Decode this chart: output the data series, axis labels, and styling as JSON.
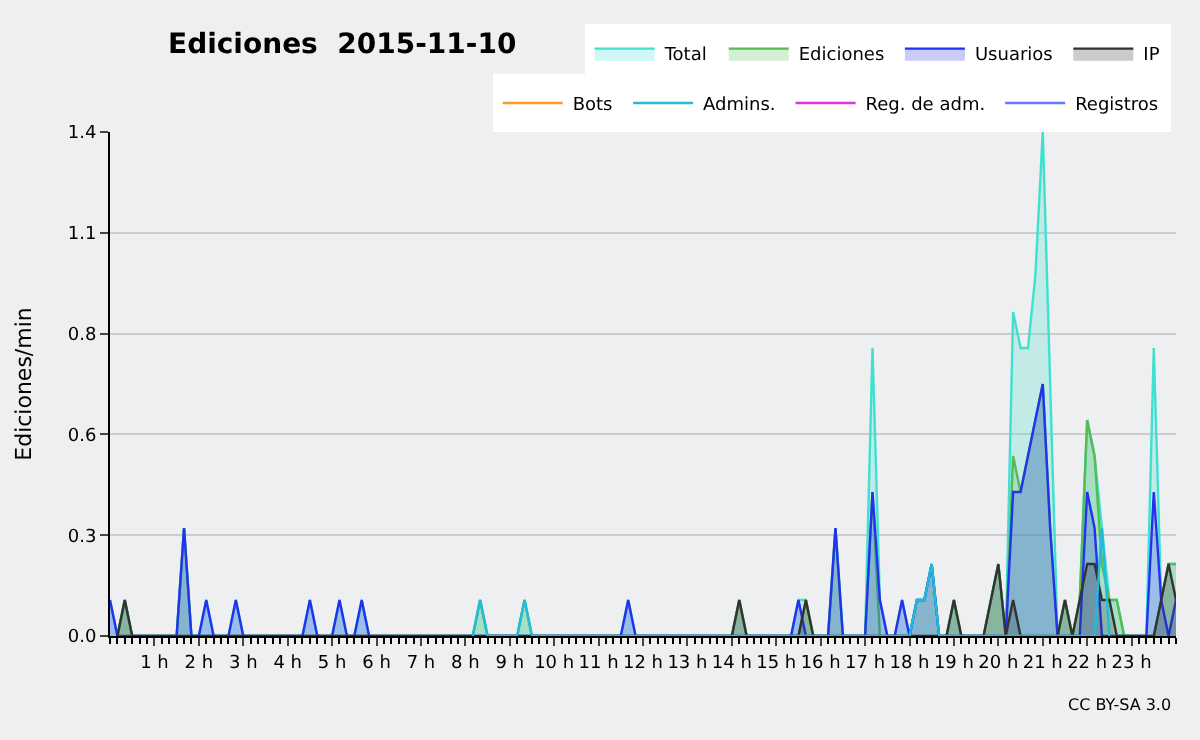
{
  "chart_data": {
    "type": "area",
    "title": "Ediciones  2015-11-10",
    "ylabel": "Ediciones/min",
    "xlim": [
      0,
      24
    ],
    "ylim": [
      0,
      1.4
    ],
    "xticks": [
      {
        "value": 1,
        "label": "1 h"
      },
      {
        "value": 2,
        "label": "2 h"
      },
      {
        "value": 3,
        "label": "3 h"
      },
      {
        "value": 4,
        "label": "4 h"
      },
      {
        "value": 5,
        "label": "5 h"
      },
      {
        "value": 6,
        "label": "6 h"
      },
      {
        "value": 7,
        "label": "7 h"
      },
      {
        "value": 8,
        "label": "8 h"
      },
      {
        "value": 9,
        "label": "9 h"
      },
      {
        "value": 10,
        "label": "10 h"
      },
      {
        "value": 11,
        "label": "11 h"
      },
      {
        "value": 12,
        "label": "12 h"
      },
      {
        "value": 13,
        "label": "13 h"
      },
      {
        "value": 14,
        "label": "14 h"
      },
      {
        "value": 15,
        "label": "15 h"
      },
      {
        "value": 16,
        "label": "16 h"
      },
      {
        "value": 17,
        "label": "17 h"
      },
      {
        "value": 18,
        "label": "18 h"
      },
      {
        "value": 19,
        "label": "19 h"
      },
      {
        "value": 20,
        "label": "20 h"
      },
      {
        "value": 21,
        "label": "21 h"
      },
      {
        "value": 22,
        "label": "22 h"
      },
      {
        "value": 23,
        "label": "23 h"
      }
    ],
    "yticks": [
      {
        "value": 0,
        "label": "0.0"
      },
      {
        "value": 0.28,
        "label": "0.3"
      },
      {
        "value": 0.56,
        "label": "0.6"
      },
      {
        "value": 0.84,
        "label": "0.8"
      },
      {
        "value": 1.12,
        "label": "1.1"
      },
      {
        "value": 1.4,
        "label": "1.4"
      }
    ],
    "grid": "y",
    "legend": "top right",
    "annotations": [
      "CC BY-SA 3.0"
    ],
    "series": [
      {
        "name": "Total",
        "color": "#40e0d0",
        "x": [
          0,
          0.167,
          0.333,
          0.5,
          1.5,
          1.667,
          1.833,
          2,
          2.167,
          2.333,
          2.667,
          2.833,
          3,
          4.333,
          4.5,
          4.667,
          5,
          5.167,
          5.333,
          5.5,
          5.667,
          5.833,
          8.167,
          8.333,
          8.5,
          9.167,
          9.333,
          9.5,
          11.5,
          11.667,
          11.833,
          14,
          14.167,
          14.333,
          15.333,
          15.5,
          15.667,
          15.833,
          16.167,
          16.333,
          16.5,
          17,
          17.167,
          17.333,
          17.5,
          17.667,
          17.833,
          18,
          18.167,
          18.333,
          18.5,
          18.667,
          18.833,
          19,
          19.167,
          19.667,
          19.833,
          20,
          20.167,
          20.333,
          20.5,
          20.667,
          20.833,
          21,
          21.333,
          21.5,
          21.667,
          21.833,
          22,
          22.167,
          22.333,
          22.5,
          22.667,
          22.833,
          23.333,
          23.5,
          23.667,
          23.833,
          24
        ],
        "values": [
          0.1,
          0,
          0.1,
          0,
          0,
          0.3,
          0,
          0,
          0.1,
          0,
          0,
          0.1,
          0,
          0,
          0.1,
          0,
          0,
          0.1,
          0,
          0,
          0.1,
          0,
          0,
          0.1,
          0,
          0,
          0.1,
          0,
          0,
          0.1,
          0,
          0,
          0.1,
          0,
          0,
          0.1,
          0.1,
          0,
          0,
          0.3,
          0,
          0,
          0.8,
          0.1,
          0,
          0,
          0.1,
          0,
          0.1,
          0.1,
          0.2,
          0,
          0,
          0.1,
          0,
          0,
          0.1,
          0.2,
          0,
          0.9,
          0.8,
          0.8,
          1.0,
          1.4,
          0,
          0.1,
          0,
          0.1,
          0.6,
          0.5,
          0.3,
          0.1,
          0.1,
          0,
          0,
          0.8,
          0.1,
          0.2,
          0.2
        ]
      },
      {
        "name": "Ediciones",
        "color": "#55bb55",
        "x": [
          0.167,
          0.333,
          0.5,
          1.5,
          1.667,
          1.833,
          8.167,
          8.333,
          8.5,
          9.167,
          9.333,
          9.5,
          14,
          14.167,
          14.333,
          15.5,
          15.667,
          15.833,
          16.167,
          16.333,
          16.5,
          17,
          17.167,
          17.333,
          18,
          18.167,
          18.333,
          18.5,
          18.667,
          18.833,
          19,
          19.167,
          19.667,
          19.833,
          20,
          20.167,
          20.333,
          20.5,
          20.667,
          20.833,
          21,
          21.167,
          21.333,
          21.5,
          21.667,
          21.833,
          22,
          22.167,
          22.333,
          22.5,
          22.667,
          22.833,
          23.5,
          23.667,
          23.833,
          24
        ],
        "values": [
          0,
          0.1,
          0,
          0,
          0.3,
          0,
          0,
          0.1,
          0,
          0,
          0.1,
          0,
          0,
          0.1,
          0,
          0,
          0.1,
          0,
          0,
          0.3,
          0,
          0,
          0.4,
          0,
          0,
          0.1,
          0.1,
          0.2,
          0,
          0,
          0.1,
          0,
          0,
          0.1,
          0.2,
          0,
          0.5,
          0.4,
          0.5,
          0.6,
          0.7,
          0.3,
          0,
          0.1,
          0,
          0.1,
          0.6,
          0.5,
          0.2,
          0.1,
          0.1,
          0,
          0,
          0.1,
          0.2,
          0.2
        ]
      },
      {
        "name": "Usuarios",
        "color": "#2233ee",
        "x": [
          0,
          0.167,
          1.5,
          1.667,
          1.833,
          2,
          2.167,
          2.333,
          2.667,
          2.833,
          3,
          4.333,
          4.5,
          4.667,
          5,
          5.167,
          5.333,
          5.5,
          5.667,
          5.833,
          11.5,
          11.667,
          11.833,
          15.333,
          15.5,
          15.667,
          16.167,
          16.333,
          16.5,
          17,
          17.167,
          17.333,
          17.5,
          17.667,
          17.833,
          18,
          18.167,
          18.333,
          18.5,
          18.667,
          20.167,
          20.333,
          20.5,
          20.667,
          20.833,
          21,
          21.167,
          21.333,
          21.833,
          22,
          22.167,
          22.333,
          23.333,
          23.5,
          23.667,
          23.833,
          24
        ],
        "values": [
          0.1,
          0,
          0,
          0.3,
          0,
          0,
          0.1,
          0,
          0,
          0.1,
          0,
          0,
          0.1,
          0,
          0,
          0.1,
          0,
          0,
          0.1,
          0,
          0,
          0.1,
          0,
          0,
          0.1,
          0,
          0,
          0.3,
          0,
          0,
          0.4,
          0.1,
          0,
          0,
          0.1,
          0,
          0.1,
          0.1,
          0.2,
          0,
          0,
          0.4,
          0.4,
          0.5,
          0.6,
          0.7,
          0.3,
          0,
          0,
          0.4,
          0.3,
          0,
          0,
          0.4,
          0.1,
          0,
          0.1
        ]
      },
      {
        "name": "IP",
        "color": "#333333",
        "x": [
          0.167,
          0.333,
          0.5,
          14,
          14.167,
          14.333,
          15.5,
          15.667,
          15.833,
          18.833,
          19,
          19.167,
          19.667,
          19.833,
          20,
          20.167,
          20.333,
          20.5,
          21.333,
          21.5,
          21.667,
          21.833,
          22,
          22.167,
          22.333,
          22.5,
          22.667,
          23.5,
          23.667,
          23.833,
          24
        ],
        "values": [
          0,
          0.1,
          0,
          0,
          0.1,
          0,
          0,
          0.1,
          0,
          0,
          0.1,
          0,
          0,
          0.1,
          0.2,
          0,
          0.1,
          0,
          0,
          0.1,
          0,
          0.1,
          0.2,
          0.2,
          0.1,
          0.1,
          0,
          0,
          0.1,
          0.2,
          0.1
        ]
      },
      {
        "name": "Bots",
        "color": "#ff9922",
        "type": "line"
      },
      {
        "name": "Admins.",
        "color": "#22bbdd",
        "type": "line",
        "x": [
          8.167,
          8.333,
          8.5,
          9.167,
          9.333,
          9.5,
          18,
          18.167,
          18.333,
          18.5,
          18.667,
          22.167,
          22.333,
          22.5
        ],
        "values": [
          0,
          0.1,
          0,
          0,
          0.1,
          0,
          0,
          0.1,
          0.1,
          0.2,
          0,
          0,
          0.3,
          0
        ]
      },
      {
        "name": "Reg. de adm.",
        "color": "#dd33dd",
        "type": "line"
      },
      {
        "name": "Registros",
        "color": "#6677ff",
        "type": "line"
      }
    ]
  }
}
